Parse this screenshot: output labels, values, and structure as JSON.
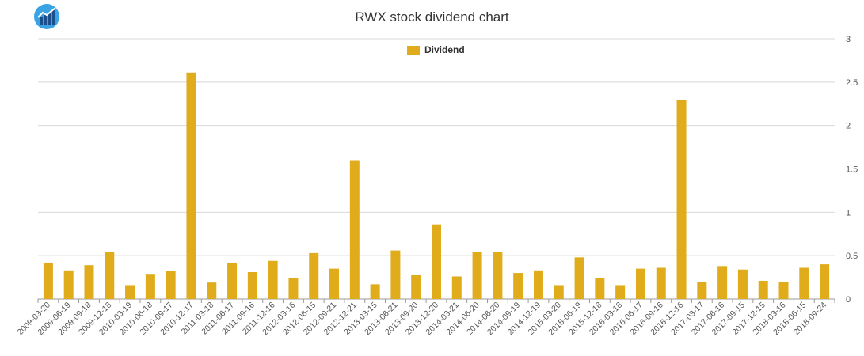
{
  "chart_data": {
    "type": "bar",
    "title": "RWX stock dividend chart",
    "xlabel": "",
    "ylabel": "",
    "ylim": [
      0,
      3
    ],
    "yticks": [
      "0",
      "0.5",
      "1",
      "1.5",
      "2",
      "2.5",
      "3"
    ],
    "grid": true,
    "legend_position": "top",
    "bar_color": "#e0ac1b",
    "categories": [
      "2009-03-20",
      "2009-06-19",
      "2009-09-18",
      "2009-12-18",
      "2010-03-19",
      "2010-06-18",
      "2010-09-17",
      "2010-12-17",
      "2011-03-18",
      "2011-06-17",
      "2011-09-16",
      "2011-12-16",
      "2012-03-16",
      "2012-06-15",
      "2012-09-21",
      "2012-12-21",
      "2013-03-15",
      "2013-06-21",
      "2013-09-20",
      "2013-12-20",
      "2014-03-21",
      "2014-06-20",
      "2014-06-20",
      "2014-09-19",
      "2014-12-19",
      "2015-03-20",
      "2015-06-19",
      "2015-12-18",
      "2016-03-18",
      "2016-06-17",
      "2016-09-16",
      "2016-12-16",
      "2017-03-17",
      "2017-06-16",
      "2017-09-15",
      "2017-12-15",
      "2018-03-16",
      "2018-06-15",
      "2018-09-24"
    ],
    "series": [
      {
        "name": "Dividend",
        "values": [
          0.42,
          0.33,
          0.39,
          0.54,
          0.16,
          0.29,
          0.32,
          2.61,
          0.19,
          0.42,
          0.31,
          0.44,
          0.24,
          0.53,
          0.35,
          1.6,
          0.17,
          0.56,
          0.28,
          0.86,
          0.26,
          0.54,
          0.54,
          0.3,
          0.33,
          0.16,
          0.48,
          0.24,
          0.16,
          0.35,
          0.36,
          2.29,
          0.2,
          0.38,
          0.34,
          0.21,
          0.2,
          0.36,
          0.4
        ]
      }
    ]
  }
}
